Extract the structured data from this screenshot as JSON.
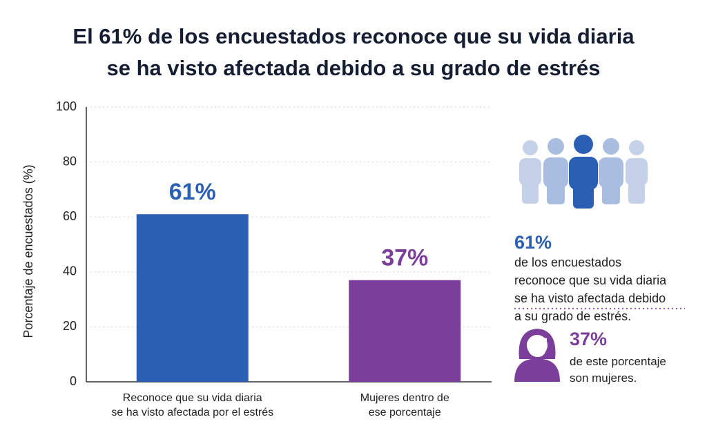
{
  "chart_data": {
    "type": "bar",
    "title": "El 61% de los encuestados reconoce que su vida diaria\nse ha visto afectada debido a su grado de estrés",
    "ylabel": "Porcentaje de encuestados (%)",
    "categories": [
      "Reconoce que su vida diaria\nse ha visto afectada por el estrés",
      "Mujeres dentro de\nese porcentaje"
    ],
    "values": [
      61,
      37
    ],
    "value_labels": [
      "61%",
      "37%"
    ],
    "colors": [
      "#2b5fb4",
      "#7b3f9b"
    ],
    "ylim": [
      0,
      100
    ],
    "yticks": [
      0,
      20,
      40,
      60,
      80,
      100
    ],
    "grid": true,
    "annotations": [
      {
        "label": "61%",
        "text": "de los encuestados\nreconoce que su vida diaria\nse ha visto afectada debido\na su grado de estrés."
      },
      {
        "label": "37%",
        "text": "de este porcentaje\nson mujeres."
      }
    ]
  }
}
